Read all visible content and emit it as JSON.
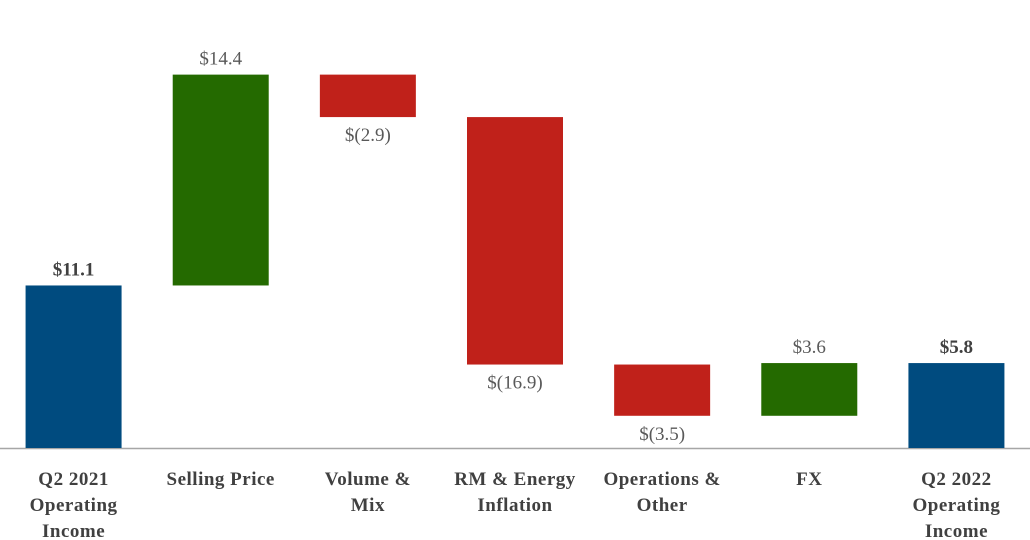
{
  "chart_data": {
    "type": "bar",
    "subtype": "waterfall",
    "title": "",
    "xlabel": "",
    "ylabel": "",
    "categories": [
      [
        "Q2 2021",
        "Operating",
        "Income"
      ],
      [
        "Selling Price"
      ],
      [
        "Volume &",
        "Mix"
      ],
      [
        "RM & Energy",
        "Inflation"
      ],
      [
        "Operations &",
        "Other"
      ],
      [
        "FX"
      ],
      [
        "Q2 2022",
        "Operating",
        "Income"
      ]
    ],
    "steps": [
      {
        "kind": "total",
        "value": 11.1,
        "label": "$11.1",
        "label_position": "above",
        "bold": true,
        "color": "#004b7f"
      },
      {
        "kind": "delta",
        "value": 14.4,
        "label": "$14.4",
        "label_position": "above",
        "bold": false,
        "color": "#246a00"
      },
      {
        "kind": "delta",
        "value": -2.9,
        "label": "$(2.9)",
        "label_position": "below",
        "bold": false,
        "color": "#c0211a"
      },
      {
        "kind": "delta",
        "value": -16.9,
        "label": "$(16.9)",
        "label_position": "below",
        "bold": false,
        "color": "#c0211a"
      },
      {
        "kind": "delta",
        "value": -3.5,
        "label": "$(3.5)",
        "label_position": "below",
        "bold": false,
        "color": "#c0211a"
      },
      {
        "kind": "delta",
        "value": 3.6,
        "label": "$3.6",
        "label_position": "above",
        "bold": false,
        "color": "#246a00"
      },
      {
        "kind": "total",
        "value": 5.8,
        "label": "$5.8",
        "label_position": "above",
        "bold": true,
        "color": "#004b7f"
      }
    ],
    "ylim": [
      0,
      25.5
    ],
    "grid": false,
    "legend": "none",
    "axis_color": "#a6a6a6"
  }
}
